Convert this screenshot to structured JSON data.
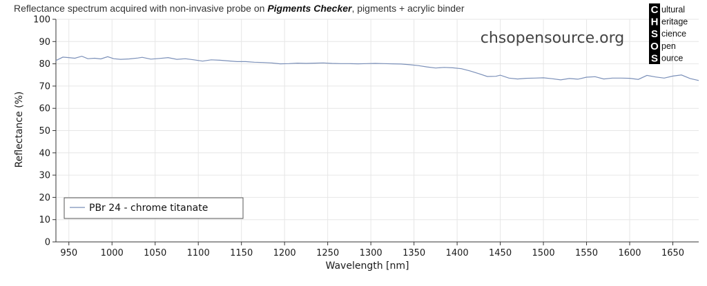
{
  "title": {
    "prefix": "Reflectance spectrum acquired with non-invasive probe on ",
    "bold": "Pigments Checker",
    "suffix": ", pigments + acrylic binder"
  },
  "watermark": "chsopensource.org",
  "logo": {
    "rows": [
      {
        "letter": "C",
        "rest": "ultural"
      },
      {
        "letter": "H",
        "rest": "eritage"
      },
      {
        "letter": "S",
        "rest": "cience"
      },
      {
        "letter": "O",
        "rest": "pen"
      },
      {
        "letter": "S",
        "rest": "ource"
      }
    ]
  },
  "colors": {
    "series": "#7a8fb8",
    "grid": "#e6e6e6",
    "axis": "#333333"
  },
  "chart_data": {
    "type": "line",
    "title": "Reflectance spectrum acquired with non-invasive probe on Pigments Checker, pigments + acrylic binder",
    "xlabel": "Wavelength [nm]",
    "ylabel": "Reflectance (%)",
    "xlim": [
      935,
      1680
    ],
    "ylim": [
      0,
      100
    ],
    "xticks": [
      950,
      1000,
      1050,
      1100,
      1150,
      1200,
      1250,
      1300,
      1350,
      1400,
      1450,
      1500,
      1550,
      1600,
      1650
    ],
    "yticks": [
      0,
      10,
      20,
      30,
      40,
      50,
      60,
      70,
      80,
      90,
      100
    ],
    "grid": true,
    "legend_position": "bottom-left",
    "series": [
      {
        "name": "PBr 24 - chrome titanate",
        "x": [
          935,
          943,
          950,
          957,
          965,
          972,
          980,
          987,
          995,
          1002,
          1010,
          1020,
          1030,
          1035,
          1045,
          1055,
          1065,
          1075,
          1085,
          1095,
          1105,
          1115,
          1125,
          1135,
          1145,
          1155,
          1165,
          1175,
          1185,
          1195,
          1205,
          1215,
          1225,
          1235,
          1245,
          1255,
          1265,
          1275,
          1285,
          1295,
          1305,
          1315,
          1325,
          1335,
          1345,
          1355,
          1365,
          1375,
          1385,
          1395,
          1405,
          1415,
          1425,
          1435,
          1445,
          1450,
          1460,
          1470,
          1480,
          1490,
          1500,
          1510,
          1520,
          1530,
          1540,
          1550,
          1560,
          1570,
          1580,
          1590,
          1600,
          1610,
          1620,
          1630,
          1640,
          1650,
          1660,
          1670,
          1680
        ],
        "y": [
          81.5,
          83.0,
          82.8,
          82.5,
          83.4,
          82.3,
          82.5,
          82.2,
          83.2,
          82.3,
          82.0,
          82.2,
          82.6,
          82.9,
          82.1,
          82.4,
          82.8,
          82.0,
          82.3,
          81.8,
          81.2,
          81.8,
          81.6,
          81.3,
          81.0,
          81.0,
          80.7,
          80.6,
          80.4,
          80.0,
          80.1,
          80.3,
          80.2,
          80.3,
          80.4,
          80.2,
          80.1,
          80.1,
          80.0,
          80.1,
          80.2,
          80.1,
          80.0,
          79.9,
          79.6,
          79.2,
          78.6,
          78.1,
          78.4,
          78.2,
          77.8,
          76.8,
          75.6,
          74.3,
          74.4,
          74.9,
          73.6,
          73.2,
          73.5,
          73.6,
          73.7,
          73.3,
          72.8,
          73.4,
          73.1,
          74.0,
          74.2,
          73.2,
          73.6,
          73.6,
          73.5,
          73.0,
          74.8,
          74.1,
          73.6,
          74.5,
          75.0,
          73.4,
          72.5
        ]
      }
    ]
  }
}
